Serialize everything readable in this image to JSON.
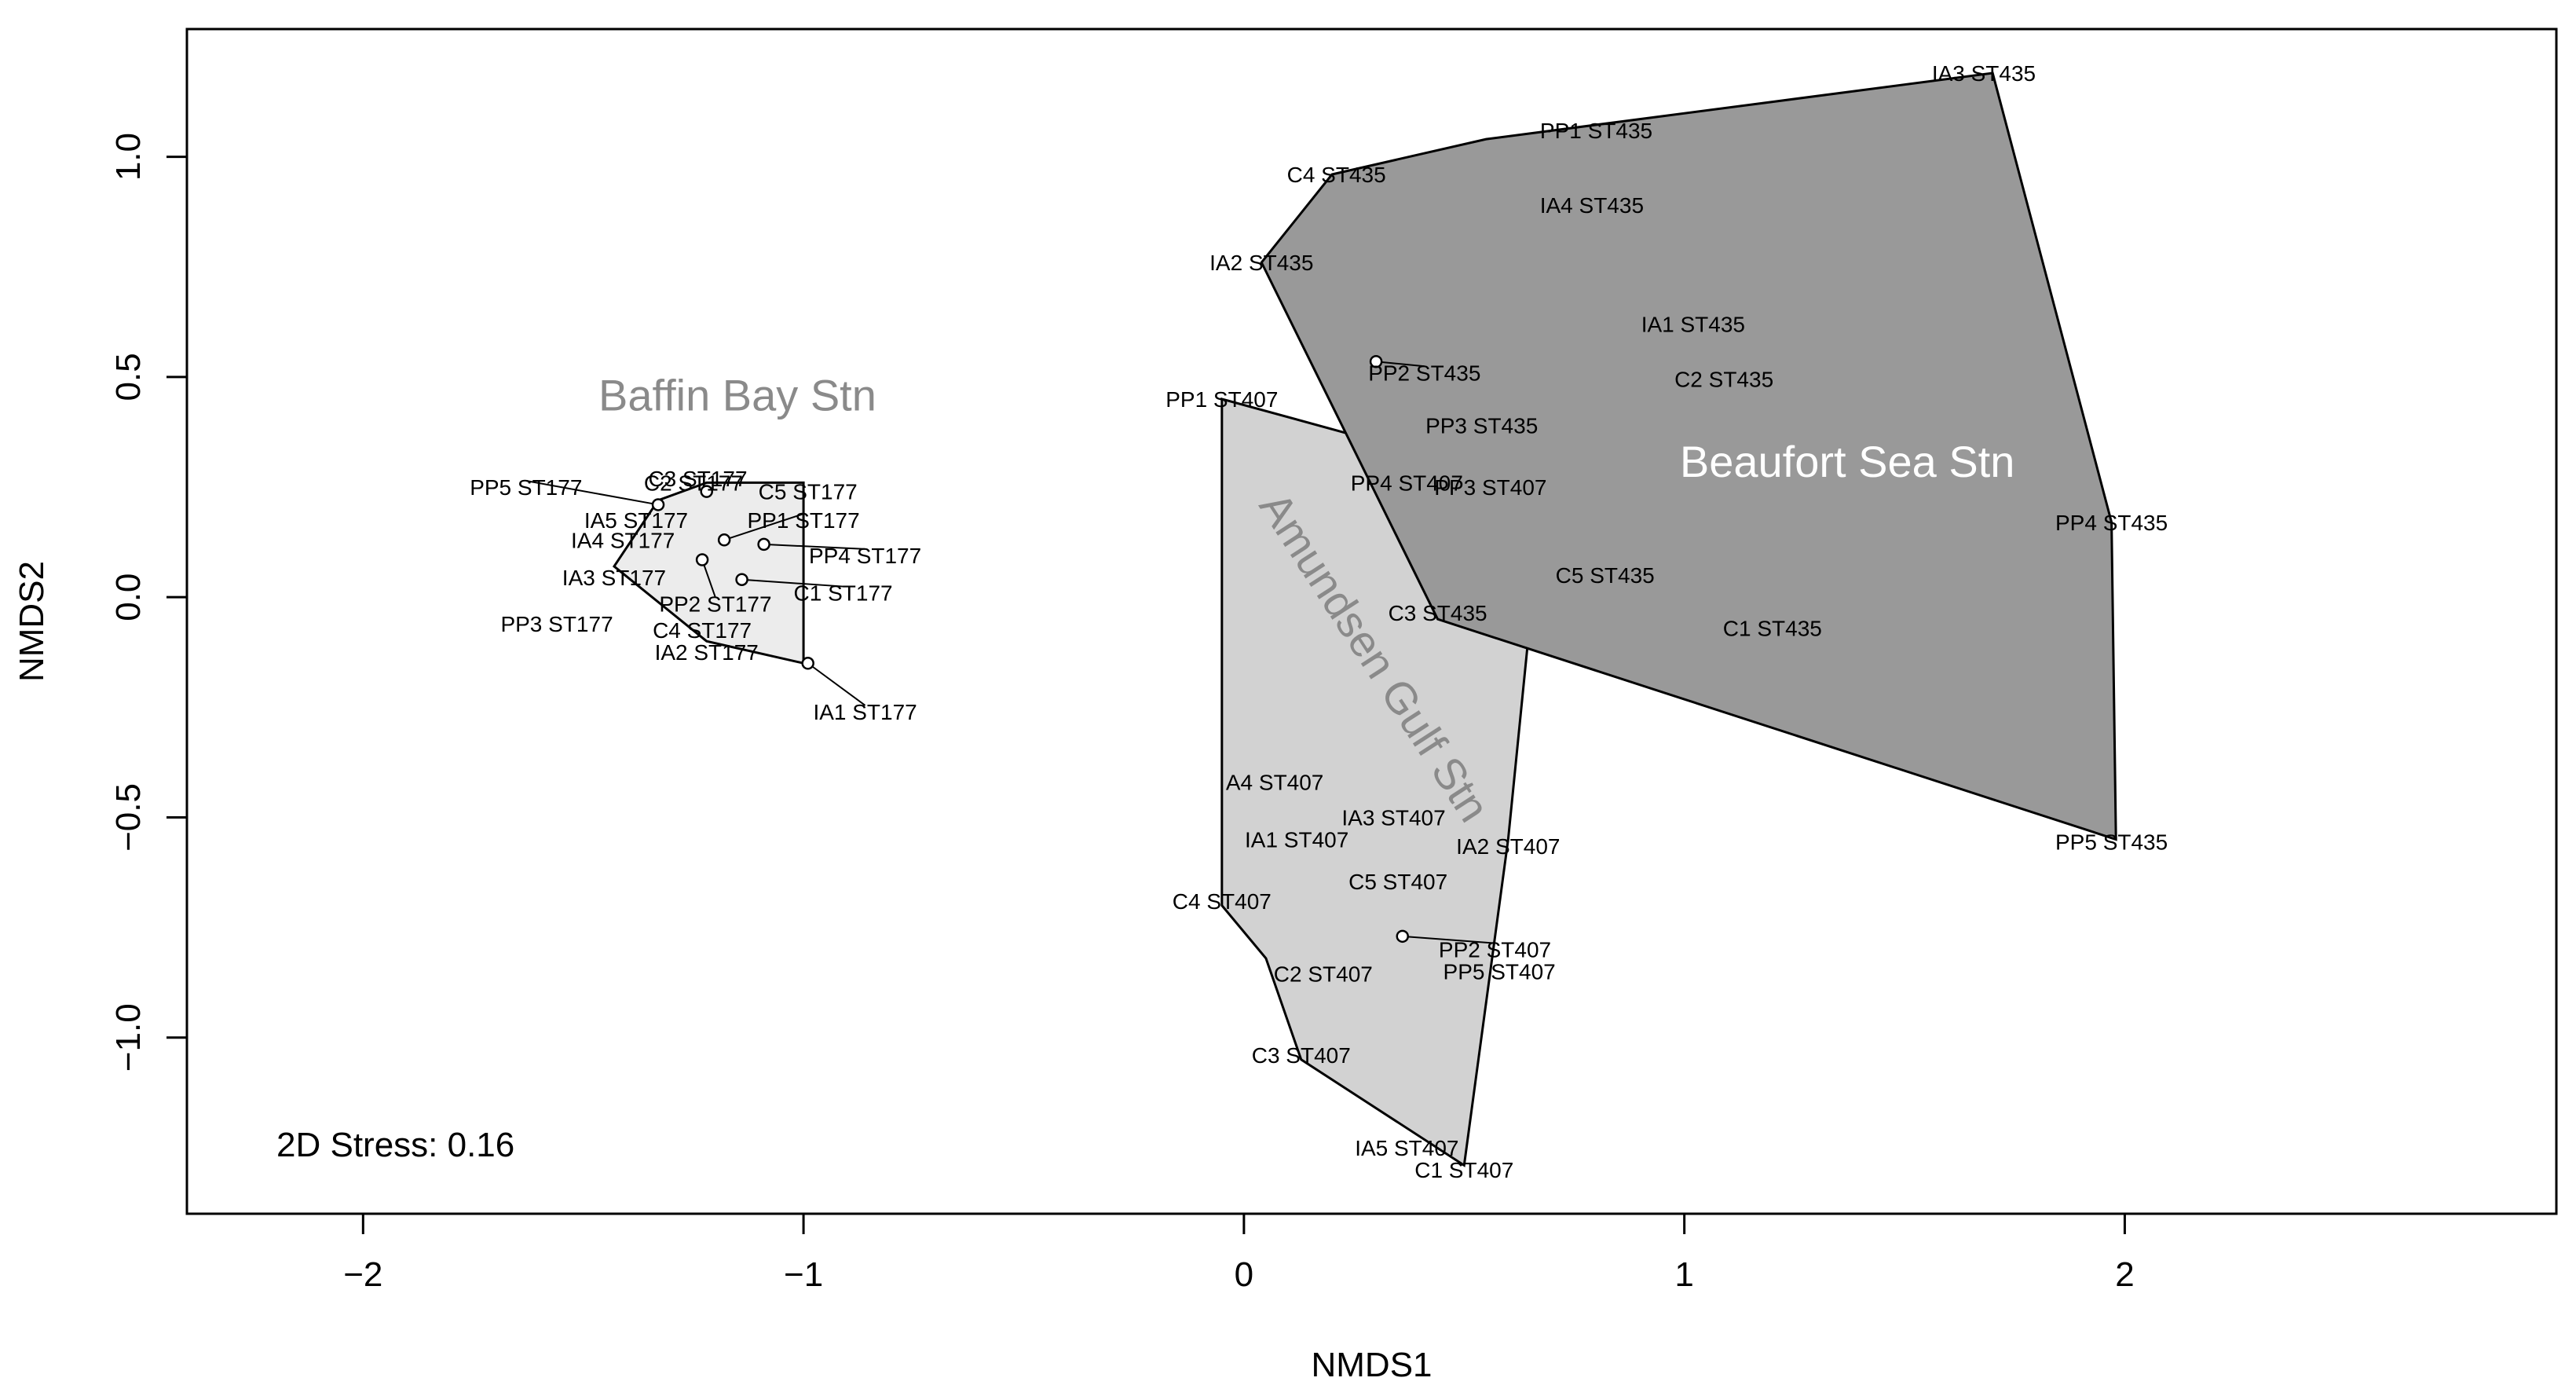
{
  "chart_data": {
    "type": "scatter",
    "title": "",
    "xlabel": "NMDS1",
    "ylabel": "NMDS2",
    "xlim": [
      -2.4,
      2.98
    ],
    "ylim": [
      -1.4,
      1.29
    ],
    "x_ticks": [
      -2,
      -1,
      0,
      1,
      2
    ],
    "x_tick_labels": [
      "−2",
      "−1",
      "0",
      "1",
      "2"
    ],
    "y_ticks": [
      -1.0,
      -0.5,
      0.0,
      0.5,
      1.0
    ],
    "y_tick_labels": [
      "−1.0",
      "−0.5",
      "0.0",
      "0.5",
      "1.0"
    ],
    "grid": false,
    "annotation": "2D Stress: 0.16",
    "groups": [
      {
        "name": "Baffin Bay Stn",
        "fill": "#ececec",
        "label_color": "#8a8a8a",
        "label_x": -1.15,
        "label_y": 0.45,
        "label_rotation": 0,
        "hull": [
          [
            -1.0,
            0.26
          ],
          [
            -1.0,
            -0.15
          ],
          [
            -1.22,
            -0.1
          ],
          [
            -1.43,
            0.07
          ],
          [
            -1.33,
            0.22
          ],
          [
            -1.22,
            0.26
          ]
        ],
        "points": [
          {
            "label": "C3 ST177",
            "x": -1.24,
            "y": 0.27
          },
          {
            "label": "C2 ST177",
            "x": -1.22,
            "y": 0.24,
            "marker": true,
            "text_x": -1.25,
            "text_y": 0.26
          },
          {
            "label": "C5 ST177",
            "x": -1.0,
            "y": 0.25,
            "text_x": -0.99,
            "text_y": 0.24
          },
          {
            "label": "PP5 ST177",
            "x": -1.33,
            "y": 0.21,
            "marker": true,
            "text_x": -1.63,
            "text_y": 0.25
          },
          {
            "label": "IA5 ST177",
            "x": -1.33,
            "y": 0.21,
            "text_x": -1.38,
            "text_y": 0.175
          },
          {
            "label": "PP1 ST177",
            "x": -1.18,
            "y": 0.13,
            "marker": true,
            "text_x": -1.0,
            "text_y": 0.175
          },
          {
            "label": "IA4 ST177",
            "x": -1.36,
            "y": 0.13,
            "text_x": -1.41,
            "text_y": 0.13
          },
          {
            "label": "PP4 ST177",
            "x": -1.09,
            "y": 0.12,
            "marker": true,
            "text_x": -0.86,
            "text_y": 0.095
          },
          {
            "label": "IA3 ST177",
            "x": -1.36,
            "y": 0.045,
            "text_x": -1.43,
            "text_y": 0.045
          },
          {
            "label": "PP2 ST177",
            "x": -1.23,
            "y": 0.085,
            "marker": true,
            "text_x": -1.2,
            "text_y": -0.015
          },
          {
            "label": "C1 ST177",
            "x": -1.14,
            "y": 0.04,
            "marker": true,
            "text_x": -0.91,
            "text_y": 0.01
          },
          {
            "label": "PP3 ST177",
            "x": -1.31,
            "y": 0.04,
            "text_x": -1.56,
            "text_y": -0.06
          },
          {
            "label": "C4 ST177",
            "x": -1.23,
            "y": -0.08,
            "text_x": -1.23,
            "text_y": -0.075
          },
          {
            "label": "IA2 ST177",
            "x": -1.22,
            "y": -0.125,
            "text_x": -1.22,
            "text_y": -0.125
          },
          {
            "label": "IA1 ST177",
            "x": -0.99,
            "y": -0.15,
            "marker": true,
            "text_x": -0.86,
            "text_y": -0.26
          }
        ]
      },
      {
        "name": "Amundsen Gulf Stn",
        "fill": "#d2d2d2",
        "label_color": "#8a8a8a",
        "label_x": 0.29,
        "label_y": -0.14,
        "label_rotation": 57,
        "hull": [
          [
            -0.05,
            0.45
          ],
          [
            0.68,
            0.25
          ],
          [
            0.6,
            -0.55
          ],
          [
            0.5,
            -1.29
          ],
          [
            0.13,
            -1.05
          ],
          [
            0.05,
            -0.82
          ],
          [
            -0.05,
            -0.7
          ]
        ],
        "points": [
          {
            "label": "PP1 ST407",
            "x": -0.05,
            "y": 0.45
          },
          {
            "label": "PP3 ST407",
            "x": 0.68,
            "y": 0.25,
            "text_x": 0.56,
            "text_y": 0.25
          },
          {
            "label": "A4 ST407",
            "x": 0.07,
            "y": -0.42
          },
          {
            "label": "IA3 ST407",
            "x": 0.34,
            "y": -0.5
          },
          {
            "label": "IA1 ST407",
            "x": 0.12,
            "y": -0.55
          },
          {
            "label": "IA2 ST407",
            "x": 0.6,
            "y": -0.565
          },
          {
            "label": "C5 ST407",
            "x": 0.35,
            "y": -0.645
          },
          {
            "label": "C4 ST407",
            "x": -0.05,
            "y": -0.69
          },
          {
            "label": "PP2 ST407",
            "x": 0.36,
            "y": -0.77,
            "marker": true,
            "text_x": 0.57,
            "text_y": -0.8
          },
          {
            "label": "C2 ST407",
            "x": 0.18,
            "y": -0.81,
            "text_x": 0.18,
            "text_y": -0.855
          },
          {
            "label": "PP5 ST407",
            "x": 0.58,
            "y": -0.85
          },
          {
            "label": "C3 ST407",
            "x": 0.13,
            "y": -1.04
          },
          {
            "label": "IA5 ST407",
            "x": 0.37,
            "y": -1.25
          },
          {
            "label": "C1 ST407",
            "x": 0.5,
            "y": -1.3
          }
        ]
      },
      {
        "name": "Beaufort Sea Stn",
        "fill": "#999999",
        "label_color": "#ffffff",
        "label_x": 1.37,
        "label_y": 0.3,
        "label_rotation": 0,
        "hull": [
          [
            1.7,
            1.19
          ],
          [
            1.97,
            0.17
          ],
          [
            1.98,
            -0.55
          ],
          [
            0.44,
            -0.05
          ],
          [
            0.04,
            0.76
          ],
          [
            0.2,
            0.96
          ],
          [
            0.55,
            1.04
          ]
        ],
        "points": [
          {
            "label": "IA3 ST435",
            "x": 1.7,
            "y": 1.19,
            "text_x": 1.68,
            "text_y": 1.19
          },
          {
            "label": "PP1 ST435",
            "x": 0.8,
            "y": 1.06
          },
          {
            "label": "C4 ST435",
            "x": 0.2,
            "y": 0.96,
            "text_x": 0.21,
            "text_y": 0.96
          },
          {
            "label": "IA4 ST435",
            "x": 0.79,
            "y": 0.89
          },
          {
            "label": "IA2 ST435",
            "x": 0.04,
            "y": 0.76,
            "text_x": 0.04,
            "text_y": 0.76
          },
          {
            "label": "IA1 ST435",
            "x": 1.02,
            "y": 0.62
          },
          {
            "label": "PP2 ST435",
            "x": 0.3,
            "y": 0.535,
            "marker": true,
            "text_x": 0.41,
            "text_y": 0.51
          },
          {
            "label": "C2 ST435",
            "x": 1.09,
            "y": 0.495
          },
          {
            "label": "PP3 ST435",
            "x": 0.54,
            "y": 0.39
          },
          {
            "label": "PP4 ST407",
            "x": 0.37,
            "y": 0.26
          },
          {
            "label": "C5 ST435",
            "x": 0.82,
            "y": 0.05
          },
          {
            "label": "C3 ST435",
            "x": 0.44,
            "y": -0.035
          },
          {
            "label": "C1 ST435",
            "x": 1.2,
            "y": -0.07
          },
          {
            "label": "PP4 ST435",
            "x": 1.97,
            "y": 0.17
          },
          {
            "label": "PP5 ST435",
            "x": 1.98,
            "y": -0.55,
            "text_x": 1.97,
            "text_y": -0.555
          }
        ]
      }
    ]
  }
}
